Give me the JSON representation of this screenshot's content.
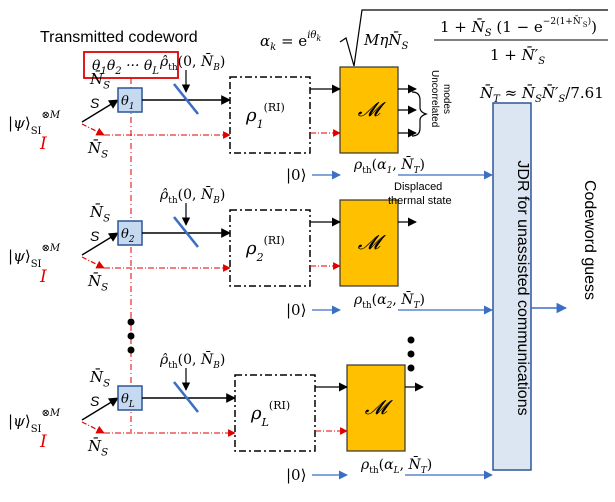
{
  "header": {
    "codeword_title": "Transmitted codeword",
    "codeword_box": "θ₁θ₂ ··· θ_L",
    "alpha_lhs": "α_k = e^{iθ_k}",
    "alpha_rhs": "√( MηN̄_S · (1 + N̄_S(1 − e^{−2(1+N̄′_S)})) / (1 + N̄′_S) )",
    "nt_formula": "N̄_T ≈ N̄_S N̄′_S / 7.61"
  },
  "labels": {
    "source": "|ψ⟩_SI^{⊗M}",
    "signal": "S",
    "idler": "I",
    "ns": "N̄_S",
    "bath_state": "ρ̂_th(0, N̄_B)",
    "vacuum": "|0⟩",
    "measurement": "𝓜",
    "uncorrelated_modes": "Uncorrelated modes",
    "displaced_thermal": "Displaced thermal state",
    "jdr": "JDR for unassisted communications",
    "output": "Codeword guess",
    "dots": "•\n•\n•"
  },
  "rows": [
    {
      "theta": "θ₁",
      "rho": "ρ₁^(RI)",
      "out_state": "ρ_th(α₁, N̄_T)",
      "show_bath": true
    },
    {
      "theta": "θ₂",
      "rho": "ρ₂^(RI)",
      "out_state": "ρ_th(α₂, N̄_T)",
      "show_bath": true
    },
    {
      "theta": "θ_L",
      "rho": "ρ_L^(RI)",
      "out_state": "ρ_th(α_L, N̄_T)",
      "show_bath": true
    }
  ],
  "colors": {
    "theta_box_fill": "#c5d9f0",
    "theta_box_stroke": "#2f5597",
    "measurement_fill": "#ffc000",
    "jdr_fill": "#dce6f2",
    "jdr_stroke": "#2f5597",
    "idler_red": "#e00000",
    "line_blue": "#3a6fc4",
    "codeword_box_stroke": "#e00000"
  }
}
